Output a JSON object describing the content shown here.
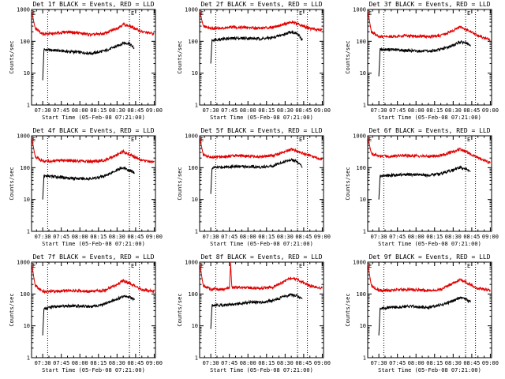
{
  "figure": {
    "title_suffix": "BLACK = Events, RED = LLD",
    "xlabel": "Start Time (05-Feb-08 07:21:00)",
    "ylabel": "Counts/sec",
    "x_tick_labels": [
      "07:30",
      "07:45",
      "08:00",
      "08:15",
      "08:30",
      "08:45",
      "09:00"
    ],
    "y_tick_labels": [
      "1",
      "10",
      "100",
      "1000"
    ],
    "marker_label": "E",
    "colors": {
      "events": "#000000",
      "lld": "#e00000",
      "axes": "#000000"
    }
  },
  "chart_data": [
    {
      "type": "line",
      "title": "Det 1f BLACK = Events, RED = LLD",
      "xlabel": "Start Time (05-Feb-08 07:21:00)",
      "ylabel": "Counts/sec",
      "ylog": true,
      "ylim": [
        1,
        1000
      ],
      "xlim": [
        "07:21",
        "09:01"
      ],
      "markers": [
        "07:34",
        "08:40",
        "08:48"
      ],
      "series": [
        {
          "name": "Events",
          "x": [
            "07:30",
            "07:31",
            "07:40",
            "07:50",
            "08:00",
            "08:10",
            "08:20",
            "08:30",
            "08:35",
            "08:40",
            "08:44"
          ],
          "y": [
            6,
            55,
            52,
            48,
            45,
            42,
            50,
            70,
            90,
            85,
            60
          ]
        },
        {
          "name": "LLD",
          "x": [
            "07:21",
            "07:24",
            "07:30",
            "07:40",
            "07:50",
            "08:00",
            "08:10",
            "08:20",
            "08:30",
            "08:35",
            "08:40",
            "08:50",
            "09:00"
          ],
          "y": [
            900,
            250,
            170,
            175,
            200,
            180,
            160,
            175,
            260,
            340,
            300,
            200,
            170
          ]
        }
      ]
    },
    {
      "type": "line",
      "title": "Det 2f BLACK = Events, RED = LLD",
      "xlabel": "Start Time (05-Feb-08 07:21:00)",
      "ylabel": "Counts/sec",
      "ylog": true,
      "ylim": [
        1,
        1000
      ],
      "xlim": [
        "07:21",
        "09:01"
      ],
      "markers": [
        "07:34",
        "08:40",
        "08:48"
      ],
      "series": [
        {
          "name": "Events",
          "x": [
            "07:30",
            "07:31",
            "07:40",
            "07:50",
            "08:00",
            "08:10",
            "08:20",
            "08:30",
            "08:35",
            "08:40",
            "08:44"
          ],
          "y": [
            20,
            110,
            120,
            125,
            125,
            120,
            130,
            170,
            200,
            170,
            110
          ]
        },
        {
          "name": "LLD",
          "x": [
            "07:21",
            "07:24",
            "07:30",
            "07:40",
            "07:50",
            "08:00",
            "08:10",
            "08:20",
            "08:30",
            "08:35",
            "08:40",
            "08:50",
            "09:00"
          ],
          "y": [
            900,
            300,
            250,
            260,
            280,
            270,
            260,
            280,
            350,
            400,
            350,
            250,
            230
          ]
        }
      ]
    },
    {
      "type": "line",
      "title": "Det 3f BLACK = Events, RED = LLD",
      "xlabel": "Start Time (05-Feb-08 07:21:00)",
      "ylabel": "Counts/sec",
      "ylog": true,
      "ylim": [
        1,
        1000
      ],
      "xlim": [
        "07:21",
        "09:01"
      ],
      "markers": [
        "07:34",
        "08:40",
        "08:48"
      ],
      "series": [
        {
          "name": "Events",
          "x": [
            "07:30",
            "07:31",
            "07:40",
            "07:50",
            "08:00",
            "08:10",
            "08:20",
            "08:30",
            "08:35",
            "08:40",
            "08:44"
          ],
          "y": [
            8,
            55,
            55,
            52,
            50,
            48,
            55,
            75,
            95,
            90,
            70
          ]
        },
        {
          "name": "LLD",
          "x": [
            "07:21",
            "07:24",
            "07:30",
            "07:40",
            "07:50",
            "08:00",
            "08:10",
            "08:20",
            "08:30",
            "08:35",
            "08:40",
            "08:50",
            "09:00"
          ],
          "y": [
            900,
            200,
            140,
            140,
            150,
            145,
            140,
            150,
            220,
            280,
            240,
            150,
            110
          ]
        }
      ]
    },
    {
      "type": "line",
      "title": "Det 4f BLACK = Events, RED = LLD",
      "xlabel": "Start Time (05-Feb-08 07:21:00)",
      "ylabel": "Counts/sec",
      "ylog": true,
      "ylim": [
        1,
        1000
      ],
      "xlim": [
        "07:21",
        "09:01"
      ],
      "markers": [
        "07:34",
        "08:40",
        "08:48"
      ],
      "series": [
        {
          "name": "Events",
          "x": [
            "07:30",
            "07:31",
            "07:40",
            "07:50",
            "08:00",
            "08:10",
            "08:20",
            "08:30",
            "08:35",
            "08:40",
            "08:44"
          ],
          "y": [
            10,
            55,
            52,
            48,
            45,
            45,
            55,
            85,
            100,
            80,
            70
          ]
        },
        {
          "name": "LLD",
          "x": [
            "07:21",
            "07:24",
            "07:30",
            "07:40",
            "07:50",
            "08:00",
            "08:10",
            "08:20",
            "08:30",
            "08:35",
            "08:40",
            "08:50",
            "09:00"
          ],
          "y": [
            900,
            220,
            160,
            160,
            170,
            160,
            155,
            170,
            250,
            320,
            260,
            170,
            150
          ]
        }
      ]
    },
    {
      "type": "line",
      "title": "Det 5f BLACK = Events, RED = LLD",
      "xlabel": "Start Time (05-Feb-08 07:21:00)",
      "ylabel": "Counts/sec",
      "ylog": true,
      "ylim": [
        1,
        1000
      ],
      "xlim": [
        "07:21",
        "09:01"
      ],
      "markers": [
        "07:34",
        "08:40",
        "08:48"
      ],
      "series": [
        {
          "name": "Events",
          "x": [
            "07:30",
            "07:31",
            "07:40",
            "07:50",
            "08:00",
            "08:10",
            "08:20",
            "08:30",
            "08:35",
            "08:40",
            "08:44"
          ],
          "y": [
            15,
            100,
            105,
            110,
            108,
            105,
            115,
            160,
            180,
            150,
            100
          ]
        },
        {
          "name": "LLD",
          "x": [
            "07:21",
            "07:24",
            "07:30",
            "07:40",
            "07:50",
            "08:00",
            "08:10",
            "08:20",
            "08:30",
            "08:35",
            "08:40",
            "08:50",
            "09:00"
          ],
          "y": [
            900,
            250,
            210,
            220,
            240,
            230,
            220,
            240,
            320,
            380,
            320,
            240,
            180
          ]
        }
      ]
    },
    {
      "type": "line",
      "title": "Det 6f BLACK = Events, RED = LLD",
      "xlabel": "Start Time (05-Feb-08 07:21:00)",
      "ylabel": "Counts/sec",
      "ylog": true,
      "ylim": [
        1,
        1000
      ],
      "xlim": [
        "07:21",
        "09:01"
      ],
      "markers": [
        "07:34",
        "08:40",
        "08:48"
      ],
      "series": [
        {
          "name": "Events",
          "x": [
            "07:30",
            "07:31",
            "07:40",
            "07:50",
            "08:00",
            "08:10",
            "08:20",
            "08:30",
            "08:35",
            "08:40",
            "08:44"
          ],
          "y": [
            10,
            55,
            58,
            60,
            60,
            58,
            65,
            85,
            100,
            95,
            75
          ]
        },
        {
          "name": "LLD",
          "x": [
            "07:21",
            "07:24",
            "07:30",
            "07:40",
            "07:50",
            "08:00",
            "08:10",
            "08:20",
            "08:30",
            "08:35",
            "08:40",
            "08:50",
            "09:00"
          ],
          "y": [
            900,
            280,
            230,
            230,
            240,
            235,
            225,
            240,
            320,
            380,
            320,
            210,
            140
          ]
        }
      ]
    },
    {
      "type": "line",
      "title": "Det 7f BLACK = Events, RED = LLD",
      "xlabel": "Start Time (05-Feb-08 07:21:00)",
      "ylabel": "Counts/sec",
      "ylog": true,
      "ylim": [
        1,
        1000
      ],
      "xlim": [
        "07:21",
        "09:01"
      ],
      "markers": [
        "07:34",
        "08:40",
        "08:48"
      ],
      "series": [
        {
          "name": "Events",
          "x": [
            "07:30",
            "07:31",
            "07:40",
            "07:50",
            "08:00",
            "08:10",
            "08:20",
            "08:30",
            "08:35",
            "08:40",
            "08:44"
          ],
          "y": [
            5,
            35,
            40,
            42,
            42,
            40,
            48,
            70,
            85,
            80,
            65
          ]
        },
        {
          "name": "LLD",
          "x": [
            "07:21",
            "07:24",
            "07:30",
            "07:40",
            "07:50",
            "08:00",
            "08:10",
            "08:20",
            "08:30",
            "08:35",
            "08:40",
            "08:50",
            "09:00"
          ],
          "y": [
            900,
            180,
            120,
            120,
            130,
            125,
            120,
            130,
            200,
            260,
            220,
            140,
            120
          ]
        }
      ]
    },
    {
      "type": "line",
      "title": "Det 8f BLACK = Events, RED = LLD",
      "xlabel": "Start Time (05-Feb-08 07:21:00)",
      "ylabel": "Counts/sec",
      "ylog": true,
      "ylim": [
        1,
        1000
      ],
      "xlim": [
        "07:21",
        "09:01"
      ],
      "markers": [
        "07:34",
        "08:40",
        "08:48"
      ],
      "series": [
        {
          "name": "Events",
          "x": [
            "07:30",
            "07:31",
            "07:40",
            "07:50",
            "08:00",
            "08:10",
            "08:20",
            "08:30",
            "08:35",
            "08:40",
            "08:44"
          ],
          "y": [
            8,
            45,
            45,
            48,
            55,
            55,
            62,
            85,
            95,
            85,
            70
          ]
        },
        {
          "name": "LLD",
          "x": [
            "07:21",
            "07:24",
            "07:30",
            "07:40",
            "07:45",
            "07:46",
            "07:47",
            "07:50",
            "08:00",
            "08:10",
            "08:20",
            "08:30",
            "08:35",
            "08:40",
            "08:50",
            "09:00"
          ],
          "y": [
            900,
            180,
            140,
            140,
            150,
            1000,
            160,
            160,
            155,
            150,
            165,
            250,
            320,
            280,
            180,
            150
          ]
        }
      ]
    },
    {
      "type": "line",
      "title": "Det 9f BLACK = Events, RED = LLD",
      "xlabel": "Start Time (05-Feb-08 07:21:00)",
      "ylabel": "Counts/sec",
      "ylog": true,
      "ylim": [
        1,
        1000
      ],
      "xlim": [
        "07:21",
        "09:01"
      ],
      "markers": [
        "07:34",
        "08:40",
        "08:48"
      ],
      "series": [
        {
          "name": "Events",
          "x": [
            "07:30",
            "07:31",
            "07:40",
            "07:50",
            "08:00",
            "08:10",
            "08:20",
            "08:30",
            "08:35",
            "08:40",
            "08:44"
          ],
          "y": [
            5,
            35,
            38,
            40,
            40,
            38,
            45,
            60,
            75,
            70,
            55
          ]
        },
        {
          "name": "LLD",
          "x": [
            "07:21",
            "07:24",
            "07:30",
            "07:40",
            "07:50",
            "08:00",
            "08:10",
            "08:20",
            "08:30",
            "08:35",
            "08:40",
            "08:50",
            "09:00"
          ],
          "y": [
            900,
            180,
            130,
            130,
            140,
            135,
            130,
            140,
            220,
            280,
            240,
            150,
            130
          ]
        }
      ]
    }
  ]
}
